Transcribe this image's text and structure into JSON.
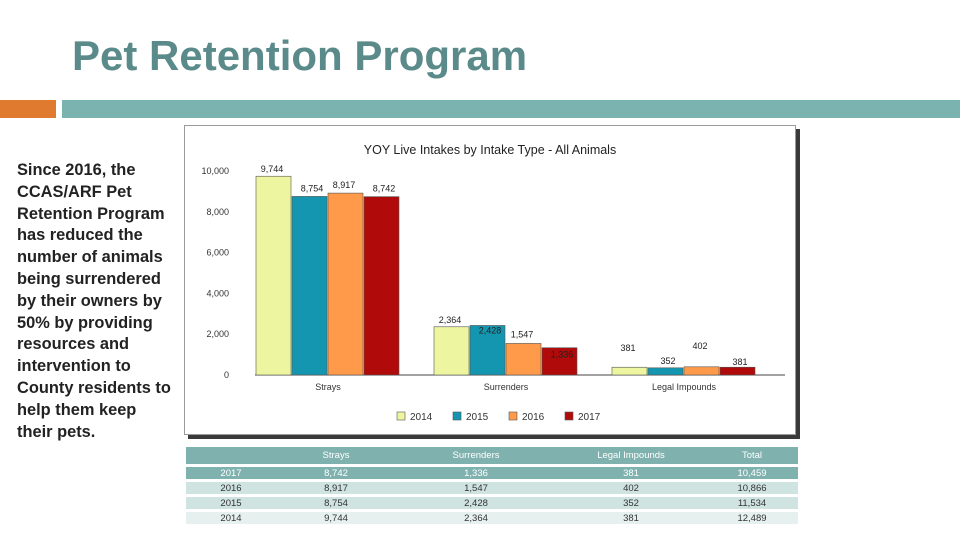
{
  "slide": {
    "title": "Pet Retention Program",
    "body": "Since 2016, the CCAS/ARF Pet Retention Program has reduced the number of animals being surrendered by their owners by 50% by providing resources and intervention to County residents to help them keep their pets."
  },
  "colors": {
    "title": "#5b8a8a",
    "accent_orange": "#e07a2e",
    "accent_teal": "#7ab3b0",
    "table_header": "#7fb2ae"
  },
  "chart_data": {
    "type": "bar",
    "title": "YOY Live Intakes by Intake Type - All Animals",
    "categories": [
      "Strays",
      "Surrenders",
      "Legal Impounds"
    ],
    "series": [
      {
        "name": "2014",
        "color": "#eef5a0",
        "values": [
          9744,
          2364,
          381
        ],
        "labels": [
          "9,744",
          "2,364",
          "381"
        ]
      },
      {
        "name": "2015",
        "color": "#1496b0",
        "values": [
          8754,
          2428,
          352
        ],
        "labels": [
          "8,754",
          "2,428",
          "352"
        ]
      },
      {
        "name": "2016",
        "color": "#ff9a4a",
        "values": [
          8917,
          1547,
          402
        ],
        "labels": [
          "8,917",
          "1,547",
          "402"
        ]
      },
      {
        "name": "2017",
        "color": "#b00a0a",
        "values": [
          8742,
          1336,
          381
        ],
        "labels": [
          "8,742",
          "1,336",
          "381"
        ]
      }
    ],
    "y_ticks": [
      {
        "value": 0,
        "label": "0"
      },
      {
        "value": 2000,
        "label": "2,000"
      },
      {
        "value": 4000,
        "label": "4,000"
      },
      {
        "value": 6000,
        "label": "6,000"
      },
      {
        "value": 8000,
        "label": "8,000"
      },
      {
        "value": 10000,
        "label": "10,000"
      }
    ],
    "ylim": [
      0,
      10000
    ],
    "grid": false,
    "legend_position": "bottom"
  },
  "table": {
    "headers": [
      "",
      "Strays",
      "Surrenders",
      "Legal Impounds",
      "Total"
    ],
    "rows": [
      [
        "2017",
        "8,742",
        "1,336",
        "381",
        "10,459"
      ],
      [
        "2016",
        "8,917",
        "1,547",
        "402",
        "10,866"
      ],
      [
        "2015",
        "8,754",
        "2,428",
        "352",
        "11,534"
      ],
      [
        "2014",
        "9,744",
        "2,364",
        "381",
        "12,489"
      ]
    ]
  }
}
